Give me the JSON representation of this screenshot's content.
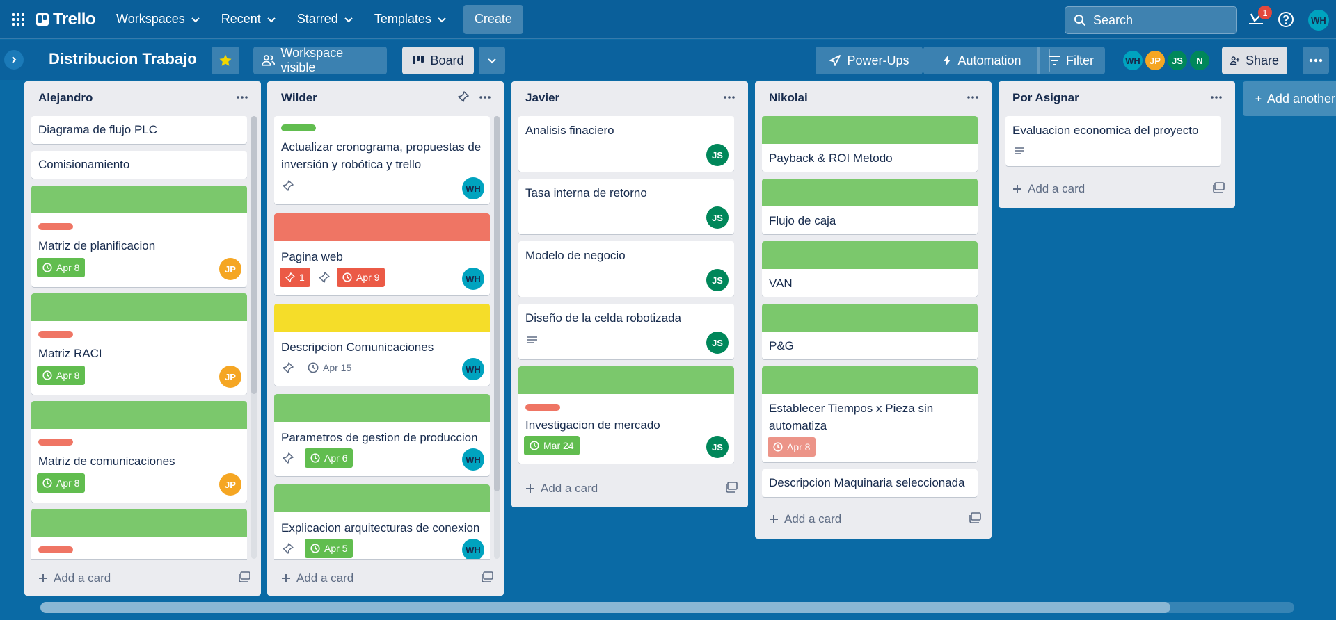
{
  "nav": {
    "logo": "Trello",
    "items": [
      {
        "label": "Workspaces"
      },
      {
        "label": "Recent"
      },
      {
        "label": "Starred"
      },
      {
        "label": "Templates"
      }
    ],
    "create": "Create",
    "search_placeholder": "Search",
    "notification_count": "1",
    "user_initials": "WH"
  },
  "board": {
    "title": "Distribucion Trabajo",
    "visibility": "Workspace visible",
    "view": "Board",
    "powerups": "Power-Ups",
    "automation": "Automation",
    "filter": "Filter",
    "share": "Share",
    "members": [
      "WH",
      "JP",
      "JS",
      "N"
    ]
  },
  "colors": {
    "green": "#61bd4f",
    "cover_green": "#7bc86c",
    "red": "#eb5a46",
    "label_red": "#ef7564",
    "yellow": "#f5dd29"
  },
  "lists": {
    "alejandro": {
      "title": "Alejandro",
      "cards": [
        {
          "title": "Diagrama de flujo PLC"
        },
        {
          "title": "Comisionamiento"
        },
        {
          "title": "Matriz de planificacion",
          "date": "Apr 8",
          "member": "JP"
        },
        {
          "title": "Matriz RACI",
          "date": "Apr 8",
          "member": "JP"
        },
        {
          "title": "Matriz de comunicaciones",
          "date": "Apr 8",
          "member": "JP"
        }
      ],
      "add": "Add a card"
    },
    "wilder": {
      "title": "Wilder",
      "cards": [
        {
          "title": "Actualizar cronograma, propuestas de inversión y robótica y trello",
          "member": "WH"
        },
        {
          "title": "Pagina web",
          "count": "1",
          "date": "Apr 9",
          "member": "WH"
        },
        {
          "title": "Descripcion Comunicaciones",
          "date": "Apr 15",
          "member": "WH"
        },
        {
          "title": "Parametros de gestion de produccion",
          "date": "Apr 6",
          "member": "WH"
        },
        {
          "title": "Explicacion arquitecturas de conexion",
          "date": "Apr 5",
          "member": "WH"
        }
      ],
      "add": "Add a card"
    },
    "javier": {
      "title": "Javier",
      "cards": [
        {
          "title": "Analisis finaciero",
          "member": "JS"
        },
        {
          "title": "Tasa interna de retorno",
          "member": "JS"
        },
        {
          "title": "Modelo de negocio",
          "member": "JS"
        },
        {
          "title": "Diseño de la celda robotizada",
          "member": "JS"
        },
        {
          "title": "Investigacion de mercado",
          "date": "Mar 24",
          "member": "JS"
        }
      ],
      "add": "Add a card"
    },
    "nikolai": {
      "title": "Nikolai",
      "cards": [
        {
          "title": "Payback & ROI Metodo"
        },
        {
          "title": "Flujo de caja"
        },
        {
          "title": "VAN"
        },
        {
          "title": "P&G"
        },
        {
          "title": "Establecer Tiempos x Pieza sin automatiza",
          "date": "Apr 8"
        },
        {
          "title": "Descripcion Maquinaria seleccionada"
        }
      ],
      "add": "Add a card"
    },
    "por_asignar": {
      "title": "Por Asignar",
      "cards": [
        {
          "title": "Evaluacion economica del proyecto"
        }
      ],
      "add": "Add a card"
    }
  },
  "add_list": "Add another list"
}
